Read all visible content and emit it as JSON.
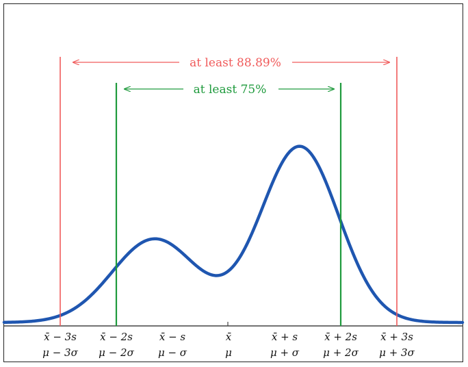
{
  "colors": {
    "curve": "#1f56b0",
    "outer_interval": "#f05a5a",
    "inner_interval": "#1e9a3c",
    "axis": "#444444",
    "text": "#111111"
  },
  "brackets": {
    "outer": {
      "label": "at least 88.89%",
      "from_k": -3,
      "to_k": 3
    },
    "inner": {
      "label": "at least 75%",
      "from_k": -2,
      "to_k": 2
    }
  },
  "ticks": [
    {
      "k": -3,
      "sample": "x̄ − 3s",
      "population": "μ − 3σ"
    },
    {
      "k": -2,
      "sample": "x̄ − 2s",
      "population": "μ − 2σ"
    },
    {
      "k": -1,
      "sample": "x̄ − s",
      "population": "μ − σ"
    },
    {
      "k": 0,
      "sample": "x̄",
      "population": "μ"
    },
    {
      "k": 1,
      "sample": "x̄ + s",
      "population": "μ + σ"
    },
    {
      "k": 2,
      "sample": "x̄ + 2s",
      "population": "μ + 2σ"
    },
    {
      "k": 3,
      "sample": "x̄ + 3s",
      "population": "μ + 3σ"
    }
  ]
}
